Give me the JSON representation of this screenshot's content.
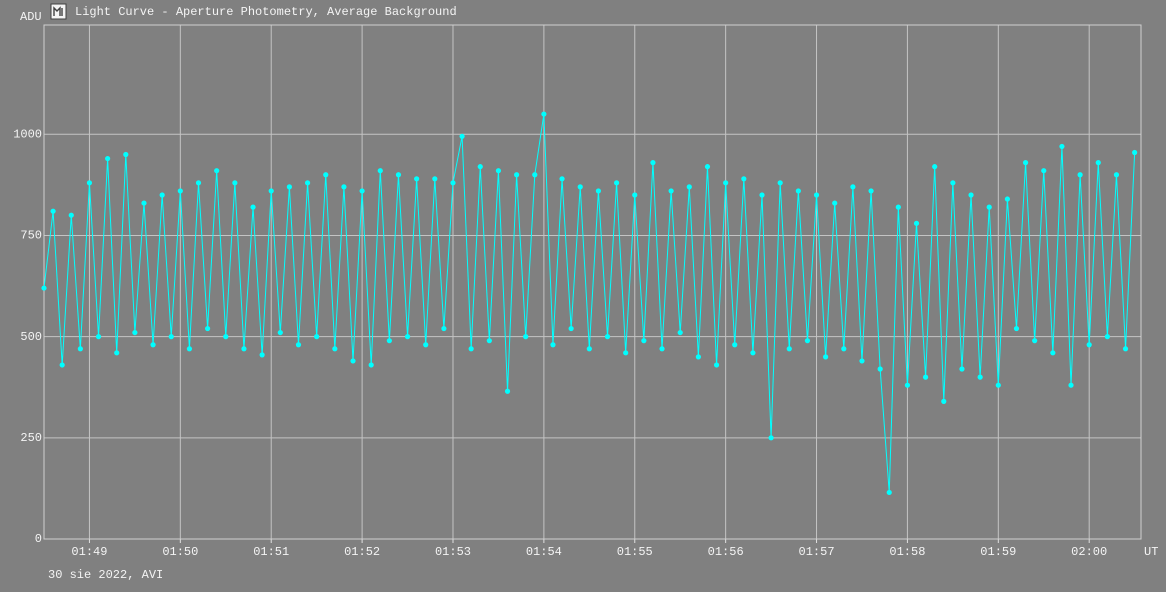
{
  "chart_data": {
    "type": "line",
    "title": "Light Curve - Aperture Photometry, Average Background",
    "y_label": "ADU",
    "x_label": "UT",
    "footer": "30 sie 2022, AVI",
    "color": "#00ffff",
    "grid": true,
    "xlim": [
      108.5,
      120.57
    ],
    "ylim": [
      0,
      1270
    ],
    "xticks": [
      {
        "value": 109,
        "label": "01:49"
      },
      {
        "value": 110,
        "label": "01:50"
      },
      {
        "value": 111,
        "label": "01:51"
      },
      {
        "value": 112,
        "label": "01:52"
      },
      {
        "value": 113,
        "label": "01:53"
      },
      {
        "value": 114,
        "label": "01:54"
      },
      {
        "value": 115,
        "label": "01:55"
      },
      {
        "value": 116,
        "label": "01:56"
      },
      {
        "value": 117,
        "label": "01:57"
      },
      {
        "value": 118,
        "label": "01:58"
      },
      {
        "value": 119,
        "label": "01:59"
      },
      {
        "value": 120,
        "label": "02:00"
      }
    ],
    "yticks": [
      0,
      250,
      500,
      750,
      1000
    ],
    "x": [
      108.5,
      108.6,
      108.7,
      108.8,
      108.9,
      109.0,
      109.1,
      109.2,
      109.3,
      109.4,
      109.5,
      109.6,
      109.7,
      109.8,
      109.9,
      110.0,
      110.1,
      110.2,
      110.3,
      110.4,
      110.5,
      110.6,
      110.7,
      110.8,
      110.9,
      111.0,
      111.1,
      111.2,
      111.3,
      111.4,
      111.5,
      111.6,
      111.7,
      111.8,
      111.9,
      112.0,
      112.1,
      112.2,
      112.3,
      112.4,
      112.5,
      112.6,
      112.7,
      112.8,
      112.9,
      113.0,
      113.1,
      113.2,
      113.3,
      113.4,
      113.5,
      113.6,
      113.7,
      113.8,
      113.9,
      114.0,
      114.1,
      114.2,
      114.3,
      114.4,
      114.5,
      114.6,
      114.7,
      114.8,
      114.9,
      115.0,
      115.1,
      115.2,
      115.3,
      115.4,
      115.5,
      115.6,
      115.7,
      115.8,
      115.9,
      116.0,
      116.1,
      116.2,
      116.3,
      116.4,
      116.5,
      116.6,
      116.7,
      116.8,
      116.9,
      117.0,
      117.1,
      117.2,
      117.3,
      117.4,
      117.5,
      117.6,
      117.7,
      117.8,
      117.9,
      118.0,
      118.1,
      118.2,
      118.3,
      118.4,
      118.5,
      118.6,
      118.7,
      118.8,
      118.9,
      119.0,
      119.1,
      119.2,
      119.3,
      119.4,
      119.5,
      119.6,
      119.7,
      119.8,
      119.9,
      120.0,
      120.1,
      120.2,
      120.3,
      120.4,
      120.5
    ],
    "values": [
      620,
      810,
      430,
      800,
      470,
      880,
      500,
      940,
      460,
      950,
      510,
      830,
      480,
      850,
      500,
      860,
      470,
      880,
      520,
      910,
      500,
      880,
      470,
      820,
      455,
      860,
      510,
      870,
      480,
      880,
      500,
      900,
      470,
      870,
      440,
      860,
      430,
      910,
      490,
      900,
      500,
      890,
      480,
      890,
      520,
      880,
      995,
      470,
      920,
      490,
      910,
      365,
      900,
      500,
      900,
      1050,
      480,
      890,
      520,
      870,
      470,
      860,
      500,
      880,
      460,
      850,
      490,
      930,
      470,
      860,
      510,
      870,
      450,
      920,
      430,
      880,
      480,
      890,
      460,
      850,
      250,
      880,
      470,
      860,
      490,
      850,
      450,
      830,
      470,
      870,
      440,
      860,
      420,
      115,
      820,
      380,
      780,
      400,
      920,
      340,
      880,
      420,
      850,
      400,
      820,
      380,
      840,
      520,
      930,
      490,
      910,
      460,
      970,
      380,
      900,
      480,
      930,
      500,
      900,
      470,
      955
    ]
  }
}
